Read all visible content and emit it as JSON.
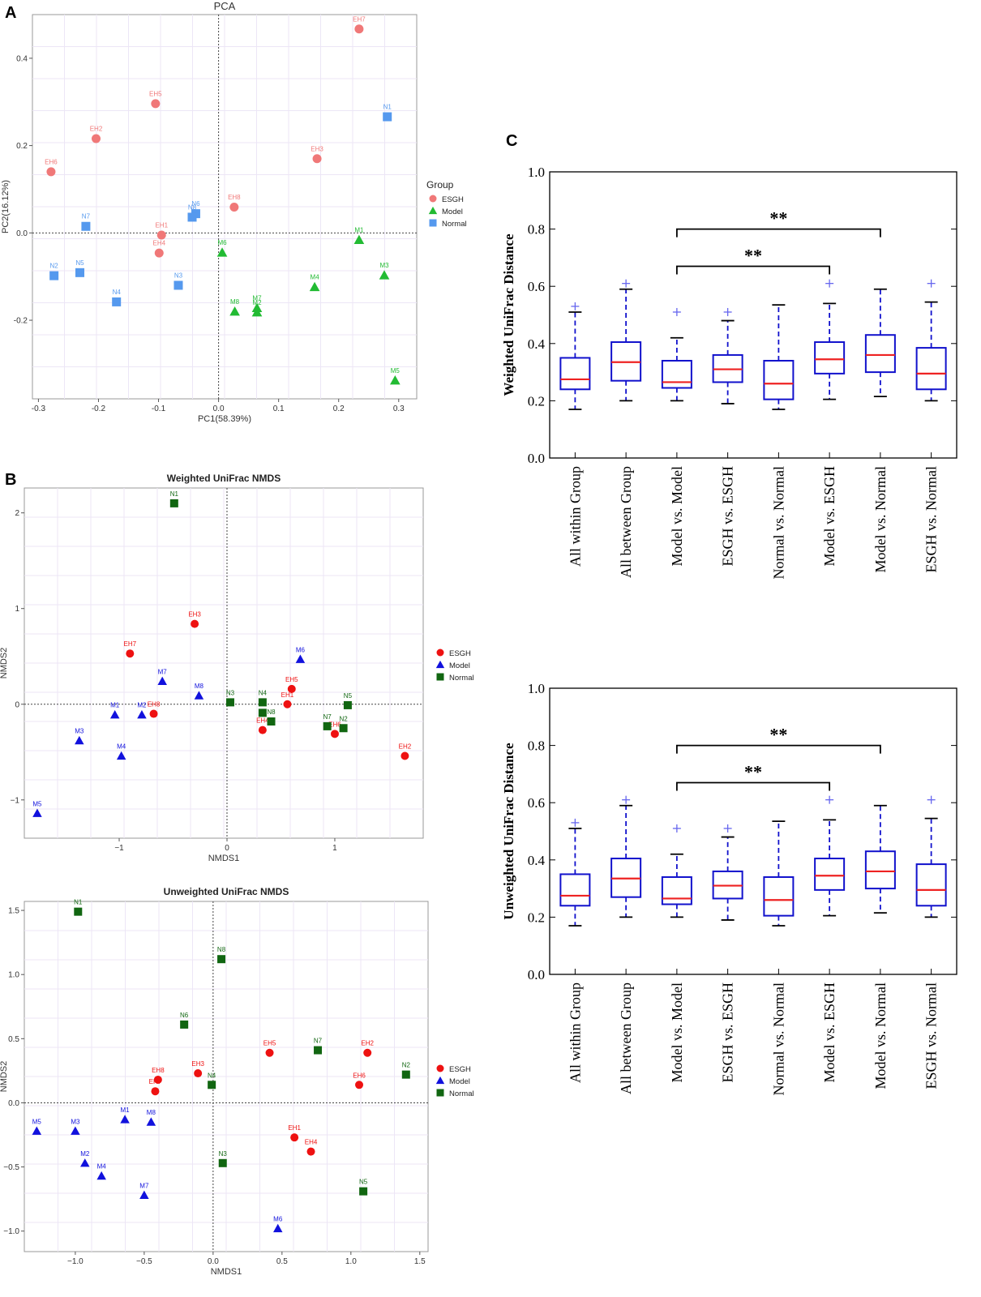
{
  "panels": {
    "a": "A",
    "b": "B",
    "c": "C"
  },
  "colors": {
    "pca_esgh": "#f07878",
    "pca_model": "#22bb33",
    "pca_normal": "#5599ee",
    "nmds_esgh": "#ee1111",
    "nmds_model": "#1111dd",
    "nmds_normal": "#116611",
    "box": "#1111cc",
    "median": "#ee2222"
  },
  "chart_data": [
    {
      "id": "pca",
      "type": "scatter",
      "title": "PCA",
      "xlabel": "PC1(58.39%)",
      "ylabel": "PC2(16.12%)",
      "xlim": [
        -0.31,
        0.33
      ],
      "ylim": [
        -0.38,
        0.5
      ],
      "xticks": [
        -0.3,
        -0.2,
        -0.1,
        0.0,
        0.1,
        0.2,
        0.3
      ],
      "xtick_labels": [
        "-0.3",
        "-0.2",
        "-0.1",
        "0.0",
        "0.1",
        "0.2",
        "0.3"
      ],
      "yticks": [
        -0.2,
        0.0,
        0.2,
        0.4
      ],
      "ytick_labels": [
        "-0.2",
        "0.0",
        "0.2",
        "0.4"
      ],
      "legend": {
        "title": "Group",
        "entries": [
          "ESGH",
          "Model",
          "Normal"
        ],
        "placement": "right"
      },
      "series": [
        {
          "name": "ESGH",
          "marker": "circle",
          "points": [
            {
              "label": "EH1",
              "x": -0.095,
              "y": -0.005
            },
            {
              "label": "EH2",
              "x": -0.204,
              "y": 0.216
            },
            {
              "label": "EH3",
              "x": 0.164,
              "y": 0.17
            },
            {
              "label": "EH4",
              "x": -0.099,
              "y": -0.046
            },
            {
              "label": "EH5",
              "x": -0.105,
              "y": 0.296
            },
            {
              "label": "EH6",
              "x": -0.279,
              "y": 0.14
            },
            {
              "label": "EH7",
              "x": 0.234,
              "y": 0.467
            },
            {
              "label": "EH8",
              "x": 0.026,
              "y": 0.059
            }
          ]
        },
        {
          "name": "Model",
          "marker": "triangle",
          "points": [
            {
              "label": "M1",
              "x": 0.234,
              "y": -0.016
            },
            {
              "label": "M3",
              "x": 0.276,
              "y": -0.097
            },
            {
              "label": "M4",
              "x": 0.16,
              "y": -0.124
            },
            {
              "label": "M5",
              "x": 0.294,
              "y": -0.338
            },
            {
              "label": "M6",
              "x": 0.006,
              "y": -0.045
            },
            {
              "label": "M7",
              "x": 0.064,
              "y": -0.172
            },
            {
              "label": "M2",
              "x": 0.064,
              "y": -0.182
            },
            {
              "label": "M8",
              "x": 0.027,
              "y": -0.18
            }
          ]
        },
        {
          "name": "Normal",
          "marker": "square",
          "points": [
            {
              "label": "N1",
              "x": 0.281,
              "y": 0.266
            },
            {
              "label": "N2",
              "x": -0.274,
              "y": -0.098
            },
            {
              "label": "N3",
              "x": -0.067,
              "y": -0.12
            },
            {
              "label": "N4",
              "x": -0.17,
              "y": -0.158
            },
            {
              "label": "N5",
              "x": -0.231,
              "y": -0.091
            },
            {
              "label": "N6",
              "x": -0.038,
              "y": 0.044
            },
            {
              "label": "N8",
              "x": -0.044,
              "y": 0.036
            },
            {
              "label": "N7",
              "x": -0.221,
              "y": 0.015
            }
          ]
        }
      ]
    },
    {
      "id": "nmds_weighted",
      "type": "scatter",
      "title": "Weighted UniFrac NMDS",
      "xlabel": "NMDS1",
      "ylabel": "NMDS2",
      "xlim": [
        -1.88,
        1.82
      ],
      "ylim": [
        -1.4,
        2.26
      ],
      "xticks": [
        -1,
        0,
        1
      ],
      "xtick_labels": [
        "−1",
        "0",
        "1"
      ],
      "yticks": [
        -1,
        0,
        1,
        2
      ],
      "ytick_labels": [
        "−1",
        "0",
        "1",
        "2"
      ],
      "legend": {
        "entries": [
          "ESGH",
          "Model",
          "Normal"
        ],
        "placement": "right"
      },
      "series": [
        {
          "name": "ESGH",
          "marker": "circle",
          "points": [
            {
              "label": "EH3",
              "x": -0.3,
              "y": 0.84
            },
            {
              "label": "EH7",
              "x": -0.9,
              "y": 0.53
            },
            {
              "label": "EH5",
              "x": 0.6,
              "y": 0.16
            },
            {
              "label": "EH1",
              "x": 0.56,
              "y": 0.0
            },
            {
              "label": "EH8",
              "x": -0.68,
              "y": -0.1
            },
            {
              "label": "EH4",
              "x": 0.33,
              "y": -0.27
            },
            {
              "label": "EH6",
              "x": 1.0,
              "y": -0.31
            },
            {
              "label": "EH2",
              "x": 1.65,
              "y": -0.54
            }
          ]
        },
        {
          "name": "Model",
          "marker": "triangle",
          "points": [
            {
              "label": "M6",
              "x": 0.68,
              "y": 0.47
            },
            {
              "label": "M7",
              "x": -0.6,
              "y": 0.24
            },
            {
              "label": "M8",
              "x": -0.26,
              "y": 0.09
            },
            {
              "label": "M1",
              "x": -1.04,
              "y": -0.11
            },
            {
              "label": "M2",
              "x": -0.79,
              "y": -0.11
            },
            {
              "label": "M3",
              "x": -1.37,
              "y": -0.38
            },
            {
              "label": "M4",
              "x": -0.98,
              "y": -0.54
            },
            {
              "label": "M5",
              "x": -1.76,
              "y": -1.14
            }
          ]
        },
        {
          "name": "Normal",
          "marker": "square",
          "points": [
            {
              "label": "N1",
              "x": -0.49,
              "y": 2.1
            },
            {
              "label": "N3",
              "x": 0.03,
              "y": 0.02
            },
            {
              "label": "N4",
              "x": 0.33,
              "y": 0.02
            },
            {
              "label": "N6",
              "x": 0.33,
              "y": -0.09
            },
            {
              "label": "N8",
              "x": 0.41,
              "y": -0.18
            },
            {
              "label": "N5",
              "x": 1.12,
              "y": -0.01
            },
            {
              "label": "N7",
              "x": 0.93,
              "y": -0.23
            },
            {
              "label": "N2",
              "x": 1.08,
              "y": -0.25
            }
          ]
        }
      ]
    },
    {
      "id": "nmds_unweighted",
      "type": "scatter",
      "title": "Unweighted UniFrac NMDS",
      "xlabel": "NMDS1",
      "ylabel": "NMDS2",
      "xlim": [
        -1.37,
        1.56
      ],
      "ylim": [
        -1.16,
        1.57
      ],
      "xticks": [
        -1.0,
        -0.5,
        0.0,
        0.5,
        1.0,
        1.5
      ],
      "xtick_labels": [
        "−1.0",
        "−0.5",
        "0.0",
        "0.5",
        "1.0",
        "1.5"
      ],
      "yticks": [
        -1.0,
        -0.5,
        0.0,
        0.5,
        1.0,
        1.5
      ],
      "ytick_labels": [
        "−1.0",
        "−0.5",
        "0.0",
        "0.5",
        "1.0",
        "1.5"
      ],
      "legend": {
        "entries": [
          "ESGH",
          "Model",
          "Normal"
        ],
        "placement": "right"
      },
      "series": [
        {
          "name": "ESGH",
          "marker": "circle",
          "points": [
            {
              "label": "EH5",
              "x": 0.41,
              "y": 0.39
            },
            {
              "label": "EH2",
              "x": 1.12,
              "y": 0.39
            },
            {
              "label": "EH6",
              "x": 1.06,
              "y": 0.14
            },
            {
              "label": "EH3",
              "x": -0.11,
              "y": 0.23
            },
            {
              "label": "EH8",
              "x": -0.4,
              "y": 0.18
            },
            {
              "label": "EH7",
              "x": -0.42,
              "y": 0.09
            },
            {
              "label": "EH1",
              "x": 0.59,
              "y": -0.27
            },
            {
              "label": "EH4",
              "x": 0.71,
              "y": -0.38
            }
          ]
        },
        {
          "name": "Model",
          "marker": "triangle",
          "points": [
            {
              "label": "M1",
              "x": -0.64,
              "y": -0.13
            },
            {
              "label": "M8",
              "x": -0.45,
              "y": -0.15
            },
            {
              "label": "M5",
              "x": -1.28,
              "y": -0.22
            },
            {
              "label": "M3",
              "x": -1.0,
              "y": -0.22
            },
            {
              "label": "M2",
              "x": -0.93,
              "y": -0.47
            },
            {
              "label": "M4",
              "x": -0.81,
              "y": -0.57
            },
            {
              "label": "M7",
              "x": -0.5,
              "y": -0.72
            },
            {
              "label": "M6",
              "x": 0.47,
              "y": -0.98
            }
          ]
        },
        {
          "name": "Normal",
          "marker": "square",
          "points": [
            {
              "label": "N1",
              "x": -0.98,
              "y": 1.49
            },
            {
              "label": "N8",
              "x": 0.06,
              "y": 1.12
            },
            {
              "label": "N6",
              "x": -0.21,
              "y": 0.61
            },
            {
              "label": "N4",
              "x": -0.01,
              "y": 0.14
            },
            {
              "label": "N7",
              "x": 0.76,
              "y": 0.41
            },
            {
              "label": "N2",
              "x": 1.4,
              "y": 0.22
            },
            {
              "label": "N3",
              "x": 0.07,
              "y": -0.47
            },
            {
              "label": "N5",
              "x": 1.09,
              "y": -0.69
            }
          ]
        }
      ]
    },
    {
      "id": "weighted_box",
      "type": "box",
      "ylabel": "Weighted UniFrac Distance",
      "ylim": [
        0.0,
        1.0
      ],
      "yticks": [
        0.0,
        0.2,
        0.4,
        0.6,
        0.8,
        1.0
      ],
      "ytick_labels": [
        "0.0",
        "0.2",
        "0.4",
        "0.6",
        "0.8",
        "1.0"
      ],
      "categories": [
        "All within Group",
        "All between Group",
        "Model vs. Model",
        "ESGH vs. ESGH",
        "Normal vs. Normal",
        "Model vs. ESGH",
        "Model vs. Normal",
        "ESGH vs. Normal"
      ],
      "boxes": [
        {
          "whislo": 0.17,
          "q1": 0.24,
          "med": 0.275,
          "q3": 0.35,
          "whishi": 0.51,
          "fliers": [
            0.53
          ]
        },
        {
          "whislo": 0.2,
          "q1": 0.27,
          "med": 0.335,
          "q3": 0.405,
          "whishi": 0.59,
          "fliers": [
            0.61
          ]
        },
        {
          "whislo": 0.2,
          "q1": 0.245,
          "med": 0.265,
          "q3": 0.34,
          "whishi": 0.42,
          "fliers": [
            0.51
          ]
        },
        {
          "whislo": 0.19,
          "q1": 0.265,
          "med": 0.31,
          "q3": 0.36,
          "whishi": 0.48,
          "fliers": [
            0.51
          ]
        },
        {
          "whislo": 0.17,
          "q1": 0.205,
          "med": 0.26,
          "q3": 0.34,
          "whishi": 0.535,
          "fliers": []
        },
        {
          "whislo": 0.205,
          "q1": 0.295,
          "med": 0.345,
          "q3": 0.405,
          "whishi": 0.54,
          "fliers": [
            0.61
          ]
        },
        {
          "whislo": 0.215,
          "q1": 0.3,
          "med": 0.36,
          "q3": 0.43,
          "whishi": 0.59,
          "fliers": []
        },
        {
          "whislo": 0.2,
          "q1": 0.24,
          "med": 0.295,
          "q3": 0.385,
          "whishi": 0.545,
          "fliers": [
            0.61
          ]
        }
      ],
      "significance": [
        {
          "from": 2,
          "to": 6,
          "label": "**",
          "y": 0.8
        },
        {
          "from": 2,
          "to": 5,
          "label": "**",
          "y": 0.67
        }
      ]
    },
    {
      "id": "unweighted_box",
      "type": "box",
      "ylabel": "Unweighted UniFrac Distance",
      "ylim": [
        0.0,
        1.0
      ],
      "yticks": [
        0.0,
        0.2,
        0.4,
        0.6,
        0.8,
        1.0
      ],
      "ytick_labels": [
        "0.0",
        "0.2",
        "0.4",
        "0.6",
        "0.8",
        "1.0"
      ],
      "categories": [
        "All within Group",
        "All between Group",
        "Model vs. Model",
        "ESGH vs. ESGH",
        "Normal vs. Normal",
        "Model vs. ESGH",
        "Model vs. Normal",
        "ESGH vs. Normal"
      ],
      "boxes": [
        {
          "whislo": 0.17,
          "q1": 0.24,
          "med": 0.275,
          "q3": 0.35,
          "whishi": 0.51,
          "fliers": [
            0.53
          ]
        },
        {
          "whislo": 0.2,
          "q1": 0.27,
          "med": 0.335,
          "q3": 0.405,
          "whishi": 0.59,
          "fliers": [
            0.61
          ]
        },
        {
          "whislo": 0.2,
          "q1": 0.245,
          "med": 0.265,
          "q3": 0.34,
          "whishi": 0.42,
          "fliers": [
            0.51
          ]
        },
        {
          "whislo": 0.19,
          "q1": 0.265,
          "med": 0.31,
          "q3": 0.36,
          "whishi": 0.48,
          "fliers": [
            0.51
          ]
        },
        {
          "whislo": 0.17,
          "q1": 0.205,
          "med": 0.26,
          "q3": 0.34,
          "whishi": 0.535,
          "fliers": []
        },
        {
          "whislo": 0.205,
          "q1": 0.295,
          "med": 0.345,
          "q3": 0.405,
          "whishi": 0.54,
          "fliers": [
            0.61
          ]
        },
        {
          "whislo": 0.215,
          "q1": 0.3,
          "med": 0.36,
          "q3": 0.43,
          "whishi": 0.59,
          "fliers": []
        },
        {
          "whislo": 0.2,
          "q1": 0.24,
          "med": 0.295,
          "q3": 0.385,
          "whishi": 0.545,
          "fliers": [
            0.61
          ]
        }
      ],
      "significance": [
        {
          "from": 2,
          "to": 6,
          "label": "**",
          "y": 0.8
        },
        {
          "from": 2,
          "to": 5,
          "label": "**",
          "y": 0.67
        }
      ]
    }
  ]
}
